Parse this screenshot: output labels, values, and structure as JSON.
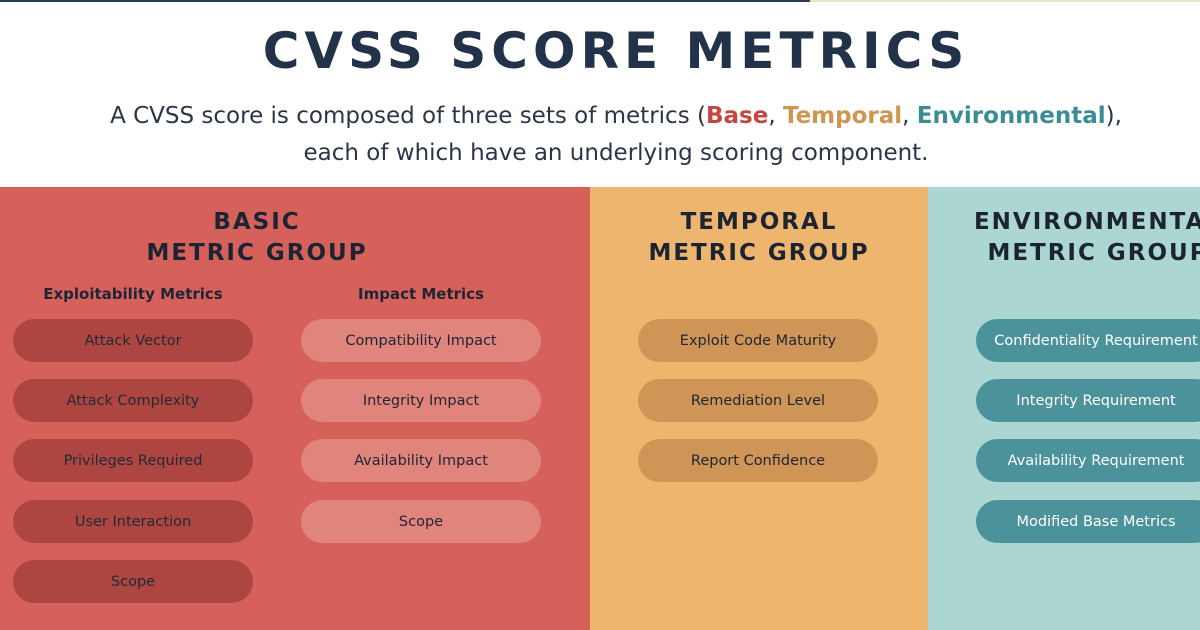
{
  "title": "CVSS SCORE METRICS",
  "subtitle": {
    "before": "A CVSS score is composed of three sets of metrics (",
    "base": "Base",
    "sep1": ", ",
    "temporal": "Temporal",
    "sep2": ", ",
    "environmental": "Environmental",
    "after": "),",
    "line2": "each of which have an underlying scoring component."
  },
  "colors": {
    "title": "#213249",
    "base_panel": "#d5615a",
    "temporal_panel": "#eeb56e",
    "environmental_panel": "#acd6d2",
    "exploitability_pill": "#ad4640",
    "impact_pill": "#e0847c",
    "temporal_pill": "#cf9556",
    "environmental_pill": "#4c929b",
    "base_text": "#c4463f",
    "temporal_text": "#cf9552",
    "environmental_text": "#3c8c96"
  },
  "base_group": {
    "title": "BASIC\nMETRIC GROUP",
    "exploitability": {
      "heading": "Exploitability Metrics",
      "items": [
        "Attack Vector",
        "Attack Complexity",
        "Privileges Required",
        "User Interaction",
        "Scope"
      ]
    },
    "impact": {
      "heading": "Impact Metrics",
      "items": [
        "Compatibility Impact",
        "Integrity Impact",
        "Availability Impact",
        "Scope"
      ]
    }
  },
  "temporal_group": {
    "title": "TEMPORAL\nMETRIC GROUP",
    "items": [
      "Exploit Code Maturity",
      "Remediation Level",
      "Report Confidence"
    ]
  },
  "environmental_group": {
    "title": "ENVIRONMENTAL\nMETRIC GROUP",
    "items": [
      "Confidentiality Requirement",
      "Integrity Requirement",
      "Availability Requirement",
      "Modified Base Metrics"
    ]
  }
}
